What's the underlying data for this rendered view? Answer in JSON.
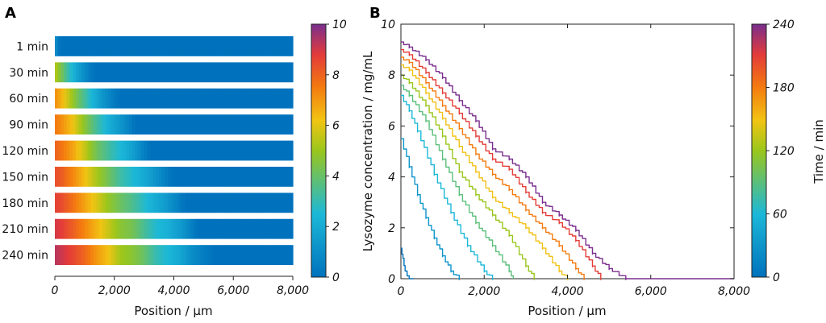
{
  "figure": {
    "panel_a_label": "A",
    "panel_b_label": "B"
  },
  "chart_data": [
    {
      "type": "heatmap",
      "panel": "A",
      "rows": [
        "1 min",
        "30 min",
        "60 min",
        "90 min",
        "120 min",
        "150 min",
        "180 min",
        "210 min",
        "240 min"
      ],
      "xlabel": "Position / μm",
      "xlim": [
        0,
        8000
      ],
      "xticks": [
        0,
        2000,
        4000,
        6000,
        8000
      ],
      "xtick_labels": [
        "0",
        "2,000",
        "4,000",
        "6,000",
        "8,000"
      ],
      "colorbar": {
        "range": [
          0,
          10
        ],
        "ticks": [
          "0",
          "2",
          "4",
          "6",
          "8",
          "10"
        ],
        "label": ""
      },
      "profile_source": "same lysozyme profiles as panel B"
    },
    {
      "type": "line",
      "panel": "B",
      "xlabel": "Position / μm",
      "ylabel": "Lysozyme concentration / mg/mL",
      "xlim": [
        0,
        8000
      ],
      "ylim": [
        0,
        10
      ],
      "xticks": [
        0,
        2000,
        4000,
        6000,
        8000
      ],
      "xtick_labels": [
        "0",
        "2,000",
        "4,000",
        "6,000",
        "8,000"
      ],
      "yticks": [
        "0",
        "2",
        "4",
        "6",
        "8",
        "10"
      ],
      "grid": false,
      "colorbar": {
        "range": [
          0,
          240
        ],
        "ticks": [
          "0",
          "60",
          "120",
          "180",
          "240"
        ],
        "label": "Time / min"
      },
      "series": [
        {
          "name": "1 min",
          "time": 1,
          "x": [
            0,
            50,
            100,
            200,
            300
          ],
          "y": [
            1.2,
            0.8,
            0.3,
            0,
            0
          ]
        },
        {
          "name": "30 min",
          "time": 30,
          "x": [
            0,
            200,
            400,
            600,
            800,
            1000,
            1200,
            1400
          ],
          "y": [
            5.5,
            4.4,
            3.3,
            2.4,
            1.6,
            0.9,
            0.3,
            0
          ]
        },
        {
          "name": "60 min",
          "time": 60,
          "x": [
            0,
            200,
            400,
            800,
            1200,
            1600,
            2000,
            2200
          ],
          "y": [
            7.2,
            6.6,
            5.8,
            4.1,
            2.6,
            1.3,
            0.3,
            0
          ]
        },
        {
          "name": "90 min",
          "time": 90,
          "x": [
            0,
            200,
            600,
            1000,
            1400,
            1800,
            2200,
            2600,
            2700
          ],
          "y": [
            7.6,
            7.2,
            6.2,
            4.7,
            3.3,
            2.2,
            1.3,
            0.3,
            0
          ]
        },
        {
          "name": "120 min",
          "time": 120,
          "x": [
            0,
            200,
            600,
            1000,
            1400,
            1800,
            2200,
            2600,
            3000,
            3200
          ],
          "y": [
            8.0,
            7.7,
            6.8,
            5.6,
            4.2,
            3.3,
            2.5,
            1.7,
            0.5,
            0
          ]
        },
        {
          "name": "150 min",
          "time": 150,
          "x": [
            0,
            200,
            600,
            1000,
            1400,
            1800,
            2200,
            2600,
            3000,
            3400,
            3800,
            4000
          ],
          "y": [
            8.4,
            8.2,
            7.3,
            6.3,
            5.2,
            4.2,
            3.2,
            2.6,
            2.0,
            1.2,
            0.3,
            0
          ]
        },
        {
          "name": "180 min",
          "time": 180,
          "x": [
            0,
            200,
            600,
            1000,
            1400,
            1800,
            2200,
            2600,
            3000,
            3400,
            3800,
            4200,
            4400
          ],
          "y": [
            8.7,
            8.5,
            7.7,
            6.8,
            5.9,
            4.9,
            4.1,
            3.5,
            2.7,
            2.0,
            1.3,
            0.4,
            0
          ]
        },
        {
          "name": "210 min",
          "time": 210,
          "x": [
            0,
            200,
            600,
            1000,
            1400,
            1800,
            2200,
            2600,
            3000,
            3400,
            3800,
            4200,
            4600,
            4800
          ],
          "y": [
            9.0,
            8.8,
            8.1,
            7.3,
            6.5,
            5.6,
            4.7,
            4.3,
            3.4,
            2.6,
            2.2,
            1.5,
            0.5,
            0
          ]
        },
        {
          "name": "240 min",
          "time": 240,
          "x": [
            0,
            200,
            600,
            1000,
            1400,
            1800,
            2200,
            2600,
            3000,
            3400,
            3800,
            4200,
            4600,
            5000,
            5400,
            8000
          ],
          "y": [
            9.3,
            9.1,
            8.6,
            7.9,
            7.0,
            6.2,
            5.1,
            4.7,
            4.0,
            3.0,
            2.5,
            1.9,
            1.0,
            0.4,
            0,
            0
          ]
        }
      ]
    }
  ]
}
